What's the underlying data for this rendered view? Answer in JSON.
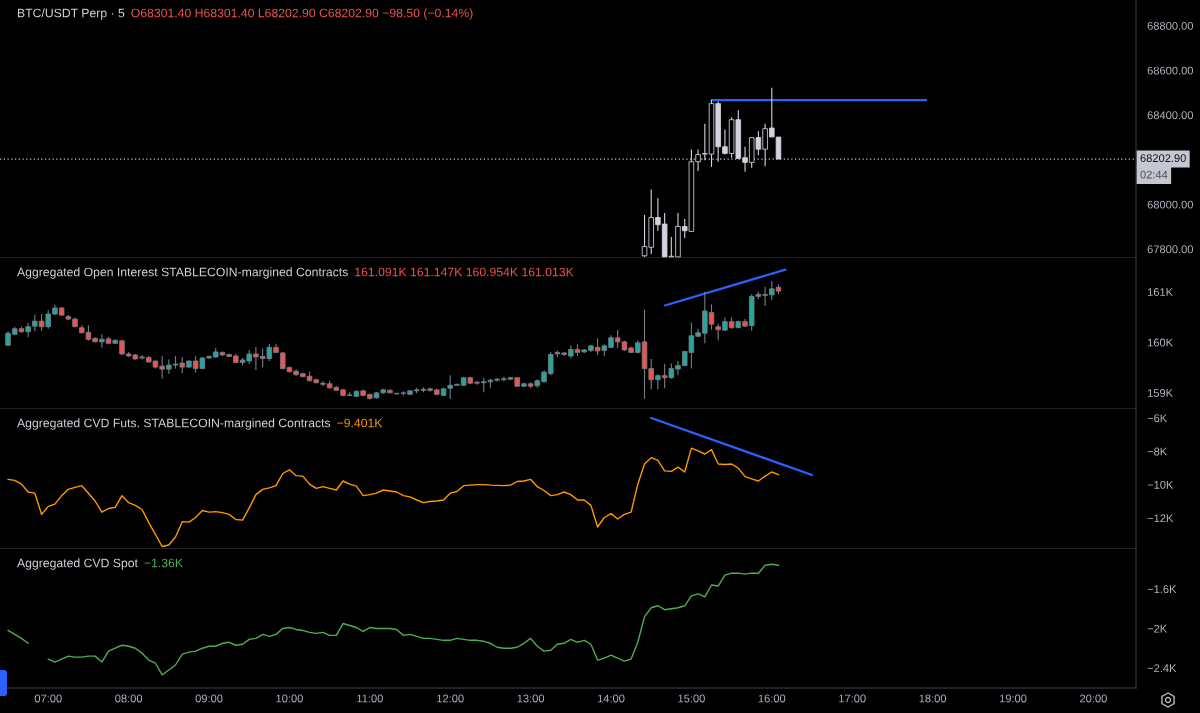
{
  "chart_data": [
    {
      "type": "candlestick",
      "title": "BTC/USDT Perp · 5",
      "subtitle": "O68301.40 H68301.40 L68202.90 C68202.90 −98.50 (−0.14%)",
      "x": [
        14.417,
        14.5,
        14.583,
        14.667,
        14.75,
        14.833,
        14.917,
        15,
        15.083,
        15.167,
        15.25,
        15.333,
        15.417,
        15.5,
        15.583,
        15.667,
        15.75,
        15.833,
        15.917,
        16,
        16.083
      ],
      "ohlc": [
        [
          67770,
          67953,
          67765,
          67811
        ],
        [
          67808,
          68067,
          67778,
          67941
        ],
        [
          67941,
          68027,
          67882,
          67909
        ],
        [
          67912,
          67961,
          67765,
          67765
        ],
        [
          67765,
          67854,
          67765,
          67765
        ],
        [
          67765,
          67961,
          67765,
          67901
        ],
        [
          67901,
          67935,
          67849,
          67882
        ],
        [
          67879,
          68246,
          67879,
          68191
        ],
        [
          68191,
          68246,
          68149,
          68223
        ],
        [
          68225,
          68361,
          68198,
          68227
        ],
        [
          68225,
          68468,
          68168,
          68451
        ],
        [
          68451,
          68461,
          68191,
          68258
        ],
        [
          68258,
          68335,
          68223,
          68228
        ],
        [
          68228,
          68390,
          68209,
          68379
        ],
        [
          68379,
          68421,
          68203,
          68206
        ],
        [
          68209,
          68258,
          68146,
          68188
        ],
        [
          68188,
          68299,
          68164,
          68299
        ],
        [
          68299,
          68327,
          68220,
          68247
        ],
        [
          68247,
          68361,
          68171,
          68339
        ],
        [
          68342,
          68522,
          68302,
          68302
        ],
        [
          68301.4,
          68301.4,
          68202.9,
          68202.9
        ]
      ],
      "color": "#d1d4dc",
      "colors": [
        "#000000",
        "#000000",
        "#d1d4dc",
        "#d1d4dc",
        "#000000",
        "#000000",
        "#d1d4dc",
        "#000000",
        "#000000",
        "#000000",
        "#000000",
        "#d1d4dc",
        "#d1d4dc",
        "#000000",
        "#d1d4dc",
        "#d1d4dc",
        "#000000",
        "#d1d4dc",
        "#000000",
        "#d1d4dc",
        "#d1d4dc"
      ],
      "series": [
        {
          "type": "line",
          "color": "#2962ff",
          "x": [
            15.25,
            17.92
          ],
          "values": [
            68467,
            68467
          ]
        }
      ],
      "xlim": [
        6.4,
        20.53
      ],
      "ylim": [
        67760,
        68915
      ],
      "yticks": [
        {
          "value": 67800,
          "label": "67800.00"
        },
        {
          "value": 68000,
          "label": "68000.00"
        },
        {
          "value": 68400,
          "label": "68400.00"
        },
        {
          "value": 68600,
          "label": "68600.00"
        },
        {
          "value": 68800,
          "label": "68800.00"
        }
      ],
      "ref_lines": [
        {
          "axis": "y",
          "value": 68202.9,
          "label": "68202.90",
          "line_style": "dotted",
          "color": "#c4c7cf"
        }
      ],
      "annotations": [
        "02:44"
      ],
      "tick_labels": "y"
    },
    {
      "type": "candlestick",
      "title": "Aggregated Open Interest STABLECOIN-margined Contracts",
      "subtitle": "161.091K 161.147K 160.954K 161.013K",
      "x": [
        6.5,
        6.583,
        6.667,
        6.75,
        6.833,
        6.917,
        7,
        7.083,
        7.167,
        7.25,
        7.333,
        7.417,
        7.5,
        7.583,
        7.667,
        7.75,
        7.833,
        7.917,
        8,
        8.083,
        8.167,
        8.25,
        8.333,
        8.417,
        8.5,
        8.583,
        8.667,
        8.75,
        8.833,
        8.917,
        9,
        9.083,
        9.167,
        9.25,
        9.333,
        9.417,
        9.5,
        9.583,
        9.667,
        9.75,
        9.833,
        9.917,
        10,
        10.083,
        10.167,
        10.25,
        10.333,
        10.417,
        10.5,
        10.583,
        10.667,
        10.75,
        10.833,
        10.917,
        11,
        11.083,
        11.167,
        11.25,
        11.333,
        11.417,
        11.5,
        11.583,
        11.667,
        11.75,
        11.833,
        11.917,
        12,
        12.083,
        12.167,
        12.25,
        12.333,
        12.417,
        12.5,
        12.583,
        12.667,
        12.75,
        12.833,
        12.917,
        13,
        13.083,
        13.167,
        13.25,
        13.333,
        13.417,
        13.5,
        13.583,
        13.667,
        13.75,
        13.833,
        13.917,
        14,
        14.083,
        14.167,
        14.25,
        14.333,
        14.417,
        14.5,
        14.583,
        14.667,
        14.75,
        14.833,
        14.917,
        15,
        15.083,
        15.167,
        15.25,
        15.333,
        15.417,
        15.5,
        15.583,
        15.667,
        15.75,
        15.833,
        15.917,
        16,
        16.083
      ],
      "ohlc": [
        [
          159940,
          160220,
          159940,
          160180
        ],
        [
          160160,
          160310,
          160140,
          160270
        ],
        [
          160270,
          160310,
          160190,
          160210
        ],
        [
          160210,
          160390,
          160100,
          160310
        ],
        [
          160320,
          160550,
          160220,
          160420
        ],
        [
          160420,
          160560,
          160230,
          160310
        ],
        [
          160310,
          160640,
          160270,
          160560
        ],
        [
          160560,
          160750,
          160540,
          160680
        ],
        [
          160680,
          160700,
          160520,
          160540
        ],
        [
          160510,
          160540,
          160440,
          160460
        ],
        [
          160460,
          160490,
          160300,
          160310
        ],
        [
          160290,
          160340,
          160180,
          160190
        ],
        [
          160200,
          160340,
          160030,
          160060
        ],
        [
          160080,
          160100,
          160000,
          160010
        ],
        [
          160010,
          160160,
          159900,
          160060
        ],
        [
          160070,
          160110,
          159960,
          159980
        ],
        [
          159980,
          160060,
          159970,
          160040
        ],
        [
          160030,
          160050,
          159750,
          159770
        ],
        [
          159770,
          159810,
          159710,
          159730
        ],
        [
          159750,
          159770,
          159660,
          159670
        ],
        [
          159690,
          159750,
          159660,
          159710
        ],
        [
          159700,
          159730,
          159600,
          159610
        ],
        [
          159630,
          159640,
          159480,
          159510
        ],
        [
          159530,
          159730,
          159280,
          159470
        ],
        [
          159470,
          159660,
          159380,
          159550
        ],
        [
          159550,
          159730,
          159480,
          159570
        ],
        [
          159590,
          159710,
          159390,
          159510
        ],
        [
          159510,
          159640,
          159500,
          159630
        ],
        [
          159630,
          159730,
          159400,
          159480
        ],
        [
          159480,
          159710,
          159470,
          159690
        ],
        [
          159690,
          159740,
          159670,
          159720
        ],
        [
          159710,
          159890,
          159690,
          159810
        ],
        [
          159800,
          159820,
          159730,
          159750
        ],
        [
          159760,
          159780,
          159710,
          159720
        ],
        [
          159730,
          159770,
          159590,
          159600
        ],
        [
          159600,
          159690,
          159540,
          159650
        ],
        [
          159630,
          159850,
          159570,
          159770
        ],
        [
          159770,
          159910,
          159450,
          159710
        ],
        [
          159720,
          159880,
          159500,
          159680
        ],
        [
          159680,
          159970,
          159630,
          159900
        ],
        [
          159900,
          159970,
          159790,
          159800
        ],
        [
          159790,
          159810,
          159460,
          159480
        ],
        [
          159500,
          159520,
          159400,
          159420
        ],
        [
          159430,
          159460,
          159340,
          159360
        ],
        [
          159380,
          159400,
          159310,
          159320
        ],
        [
          159330,
          159420,
          159230,
          159240
        ],
        [
          159260,
          159280,
          159190,
          159200
        ],
        [
          159190,
          159230,
          159130,
          159170
        ],
        [
          159180,
          159240,
          159080,
          159100
        ],
        [
          159110,
          159130,
          159040,
          159050
        ],
        [
          159060,
          159080,
          158930,
          158950
        ],
        [
          158960,
          159010,
          158930,
          158950
        ],
        [
          158930,
          159050,
          158920,
          159030
        ],
        [
          159040,
          159060,
          158930,
          158950
        ],
        [
          158970,
          158980,
          158870,
          158890
        ],
        [
          158900,
          159020,
          158890,
          159000
        ],
        [
          159000,
          159080,
          158980,
          159060
        ],
        [
          159050,
          159070,
          158990,
          159000
        ],
        [
          158990,
          159000,
          158970,
          158980
        ],
        [
          158990,
          159030,
          158940,
          159000
        ],
        [
          158970,
          159050,
          158960,
          159040
        ],
        [
          159040,
          159100,
          158990,
          159060
        ],
        [
          159050,
          159110,
          159010,
          159070
        ],
        [
          159080,
          159100,
          159020,
          159050
        ],
        [
          159060,
          159080,
          158950,
          158970
        ],
        [
          158950,
          159100,
          158940,
          159080
        ],
        [
          159090,
          159350,
          158880,
          159150
        ],
        [
          159150,
          159180,
          159140,
          159170
        ],
        [
          159150,
          159320,
          159140,
          159300
        ],
        [
          159300,
          159320,
          159170,
          159190
        ],
        [
          159210,
          159240,
          159160,
          159190
        ],
        [
          159200,
          159300,
          159010,
          159220
        ],
        [
          159220,
          159280,
          159100,
          159250
        ],
        [
          159250,
          159300,
          159220,
          159270
        ],
        [
          159260,
          159320,
          159230,
          159280
        ],
        [
          159270,
          159320,
          159250,
          159300
        ],
        [
          159300,
          159310,
          159120,
          159130
        ],
        [
          159130,
          159200,
          159120,
          159180
        ],
        [
          159180,
          159210,
          159090,
          159130
        ],
        [
          159140,
          159270,
          159100,
          159240
        ],
        [
          159220,
          159440,
          159210,
          159410
        ],
        [
          159380,
          159810,
          159350,
          159760
        ],
        [
          159770,
          159840,
          159710,
          159800
        ],
        [
          159790,
          159810,
          159730,
          159760
        ],
        [
          159730,
          159940,
          159680,
          159860
        ],
        [
          159860,
          159960,
          159730,
          159800
        ],
        [
          159810,
          159870,
          159790,
          159850
        ],
        [
          159840,
          159950,
          159810,
          159930
        ],
        [
          159900,
          160080,
          159750,
          159830
        ],
        [
          159840,
          159960,
          159730,
          159930
        ],
        [
          159900,
          160140,
          159890,
          160090
        ],
        [
          160090,
          160250,
          159890,
          160010
        ],
        [
          160010,
          160030,
          159830,
          159850
        ],
        [
          159890,
          159910,
          159790,
          159800
        ],
        [
          159800,
          160040,
          159780,
          159990
        ],
        [
          160010,
          160650,
          158880,
          159480
        ],
        [
          159480,
          159670,
          159070,
          159260
        ],
        [
          159260,
          159370,
          159070,
          159340
        ],
        [
          159340,
          159570,
          159090,
          159300
        ],
        [
          159300,
          159580,
          159280,
          159480
        ],
        [
          159470,
          159630,
          159350,
          159540
        ],
        [
          159540,
          159830,
          159530,
          159820
        ],
        [
          159800,
          160390,
          159480,
          160130
        ],
        [
          160120,
          160270,
          160100,
          160190
        ],
        [
          160180,
          161000,
          159980,
          160620
        ],
        [
          160590,
          160750,
          160250,
          160360
        ],
        [
          160310,
          160370,
          160040,
          160250
        ],
        [
          160240,
          160490,
          160230,
          160410
        ],
        [
          160410,
          160490,
          160270,
          160290
        ],
        [
          160290,
          160430,
          160280,
          160410
        ],
        [
          160410,
          160460,
          160310,
          160320
        ],
        [
          160330,
          160950,
          160230,
          160910
        ],
        [
          160910,
          161000,
          160860,
          160950
        ],
        [
          160950,
          161100,
          160720,
          160930
        ],
        [
          160940,
          161210,
          160840,
          161060
        ],
        [
          161091,
          161147,
          160954,
          161013
        ]
      ],
      "color": "#787b86",
      "colors": [
        "#26a69a",
        "#26a69a",
        "#ef5350",
        "#26a69a",
        "#26a69a",
        "#ef5350",
        "#26a69a",
        "#26a69a",
        "#ef5350",
        "#ef5350",
        "#ef5350",
        "#ef5350",
        "#ef5350",
        "#ef5350",
        "#26a69a",
        "#ef5350",
        "#26a69a",
        "#ef5350",
        "#ef5350",
        "#ef5350",
        "#26a69a",
        "#ef5350",
        "#ef5350",
        "#ef5350",
        "#26a69a",
        "#26a69a",
        "#ef5350",
        "#26a69a",
        "#ef5350",
        "#26a69a",
        "#26a69a",
        "#26a69a",
        "#ef5350",
        "#ef5350",
        "#ef5350",
        "#26a69a",
        "#26a69a",
        "#ef5350",
        "#ef5350",
        "#26a69a",
        "#ef5350",
        "#ef5350",
        "#ef5350",
        "#ef5350",
        "#ef5350",
        "#ef5350",
        "#ef5350",
        "#ef5350",
        "#ef5350",
        "#ef5350",
        "#ef5350",
        "#ef5350",
        "#26a69a",
        "#ef5350",
        "#ef5350",
        "#26a69a",
        "#26a69a",
        "#ef5350",
        "#ef5350",
        "#26a69a",
        "#26a69a",
        "#26a69a",
        "#26a69a",
        "#ef5350",
        "#ef5350",
        "#26a69a",
        "#26a69a",
        "#26a69a",
        "#26a69a",
        "#ef5350",
        "#ef5350",
        "#26a69a",
        "#26a69a",
        "#26a69a",
        "#26a69a",
        "#26a69a",
        "#ef5350",
        "#26a69a",
        "#ef5350",
        "#26a69a",
        "#26a69a",
        "#26a69a",
        "#26a69a",
        "#ef5350",
        "#26a69a",
        "#ef5350",
        "#26a69a",
        "#26a69a",
        "#ef5350",
        "#26a69a",
        "#26a69a",
        "#ef5350",
        "#ef5350",
        "#ef5350",
        "#26a69a",
        "#ef5350",
        "#ef5350",
        "#26a69a",
        "#ef5350",
        "#26a69a",
        "#26a69a",
        "#26a69a",
        "#26a69a",
        "#26a69a",
        "#26a69a",
        "#ef5350",
        "#ef5350",
        "#26a69a",
        "#ef5350",
        "#26a69a",
        "#ef5350",
        "#26a69a",
        "#26a69a",
        "#ef5350",
        "#26a69a",
        "#ef5350"
      ],
      "series": [
        {
          "type": "line",
          "color": "#2962ff",
          "x": [
            14.67,
            16.17
          ],
          "values": [
            160730,
            161440
          ]
        }
      ],
      "xlim": [
        6.4,
        20.53
      ],
      "ylim": [
        158680,
        161670
      ],
      "yticks": [
        {
          "value": 159000,
          "label": "159K"
        },
        {
          "value": 160000,
          "label": "160K"
        },
        {
          "value": 161000,
          "label": "161K"
        }
      ],
      "tick_labels": "y"
    },
    {
      "type": "line",
      "title": "Aggregated CVD Futs. STABLECOIN-margined Contracts",
      "subtitle": "−9.401K",
      "x": [
        6.5,
        6.583,
        6.667,
        6.75,
        6.833,
        6.917,
        7,
        7.083,
        7.167,
        7.25,
        7.333,
        7.417,
        7.5,
        7.583,
        7.667,
        7.75,
        7.833,
        7.917,
        8,
        8.083,
        8.167,
        8.25,
        8.333,
        8.417,
        8.5,
        8.583,
        8.667,
        8.75,
        8.833,
        8.917,
        9,
        9.083,
        9.167,
        9.25,
        9.333,
        9.417,
        9.5,
        9.583,
        9.667,
        9.75,
        9.833,
        9.917,
        10,
        10.083,
        10.167,
        10.25,
        10.333,
        10.417,
        10.5,
        10.583,
        10.667,
        10.75,
        10.833,
        10.917,
        11,
        11.083,
        11.167,
        11.25,
        11.333,
        11.417,
        11.5,
        11.583,
        11.667,
        11.75,
        11.833,
        11.917,
        12,
        12.083,
        12.167,
        12.25,
        12.333,
        12.417,
        12.5,
        12.583,
        12.667,
        12.75,
        12.833,
        12.917,
        13,
        13.083,
        13.167,
        13.25,
        13.333,
        13.417,
        13.5,
        13.583,
        13.667,
        13.75,
        13.833,
        13.917,
        14,
        14.083,
        14.167,
        14.25,
        14.333,
        14.417,
        14.5,
        14.583,
        14.667,
        14.75,
        14.833,
        14.917,
        15,
        15.083,
        15.167,
        15.25,
        15.333,
        15.417,
        15.5,
        15.583,
        15.667,
        15.75,
        15.833,
        15.917,
        16,
        16.083
      ],
      "series": [
        {
          "color": "#ff9800",
          "values": [
            -9680,
            -9740,
            -9970,
            -10440,
            -10510,
            -11780,
            -11300,
            -11170,
            -10660,
            -10280,
            -10160,
            -10060,
            -10510,
            -10980,
            -11650,
            -11430,
            -11360,
            -10660,
            -11080,
            -11240,
            -11490,
            -12280,
            -12980,
            -13710,
            -13620,
            -13140,
            -12220,
            -12250,
            -11970,
            -11550,
            -11650,
            -11620,
            -11680,
            -11780,
            -12090,
            -12130,
            -11390,
            -10600,
            -10280,
            -10190,
            -10060,
            -9330,
            -9110,
            -9460,
            -9490,
            -9970,
            -10220,
            -10120,
            -10220,
            -10320,
            -9780,
            -9970,
            -10090,
            -10660,
            -10600,
            -10510,
            -10320,
            -10380,
            -10440,
            -10660,
            -10730,
            -10920,
            -11080,
            -11010,
            -10980,
            -10920,
            -10510,
            -10410,
            -10060,
            -10030,
            -10000,
            -10000,
            -10030,
            -10040,
            -10060,
            -10030,
            -9810,
            -9780,
            -9680,
            -10120,
            -10350,
            -10660,
            -10600,
            -10440,
            -10600,
            -10920,
            -10920,
            -11240,
            -12540,
            -11970,
            -11740,
            -12060,
            -11780,
            -11650,
            -9970,
            -8760,
            -8380,
            -8540,
            -9170,
            -9200,
            -8950,
            -9240,
            -7810,
            -7970,
            -8160,
            -7900,
            -8760,
            -8790,
            -8760,
            -9010,
            -9520,
            -9650,
            -9780,
            -9490,
            -9240,
            -9401
          ]
        },
        {
          "type": "line",
          "color": "#2962ff",
          "x": [
            14.5,
            16.5
          ],
          "values": [
            -6000,
            -9420
          ]
        }
      ],
      "xlim": [
        6.4,
        20.53
      ],
      "ylim": [
        -13860,
        -5460
      ],
      "yticks": [
        {
          "value": -12000,
          "label": "−12K"
        },
        {
          "value": -10000,
          "label": "−10K"
        },
        {
          "value": -8000,
          "label": "−8K"
        },
        {
          "value": -6000,
          "label": "−6K"
        }
      ],
      "tick_labels": "y"
    },
    {
      "type": "line",
      "title": "Aggregated CVD Spot",
      "subtitle": "−1.36K",
      "x": [
        6.5,
        6.583,
        6.667,
        6.75,
        6.833,
        6.917,
        7,
        7.083,
        7.167,
        7.25,
        7.333,
        7.417,
        7.5,
        7.583,
        7.667,
        7.75,
        7.833,
        7.917,
        8,
        8.083,
        8.167,
        8.25,
        8.333,
        8.417,
        8.5,
        8.583,
        8.667,
        8.75,
        8.833,
        8.917,
        9,
        9.083,
        9.167,
        9.25,
        9.333,
        9.417,
        9.5,
        9.583,
        9.667,
        9.75,
        9.833,
        9.917,
        10,
        10.083,
        10.167,
        10.25,
        10.333,
        10.417,
        10.5,
        10.583,
        10.667,
        10.75,
        10.833,
        10.917,
        11,
        11.083,
        11.167,
        11.25,
        11.333,
        11.417,
        11.5,
        11.583,
        11.667,
        11.75,
        11.833,
        11.917,
        12,
        12.083,
        12.167,
        12.25,
        12.333,
        12.417,
        12.5,
        12.583,
        12.667,
        12.75,
        12.833,
        12.917,
        13,
        13.083,
        13.167,
        13.25,
        13.333,
        13.417,
        13.5,
        13.583,
        13.667,
        13.75,
        13.833,
        13.917,
        14,
        14.083,
        14.167,
        14.25,
        14.333,
        14.417,
        14.5,
        14.583,
        14.667,
        14.75,
        14.833,
        14.917,
        15,
        15.083,
        15.167,
        15.25,
        15.333,
        15.417,
        15.5,
        15.583,
        15.667,
        15.75,
        15.833,
        15.917,
        16,
        16.083
      ],
      "series": [
        {
          "color": "#4caf50",
          "values": [
            -2020,
            -2060,
            -2100,
            -2150,
            null,
            null,
            -2310,
            -2340,
            -2310,
            -2280,
            -2290,
            -2290,
            -2280,
            -2280,
            -2340,
            -2230,
            -2200,
            -2170,
            -2180,
            -2200,
            -2250,
            -2320,
            -2350,
            -2470,
            -2420,
            -2370,
            -2260,
            -2240,
            -2230,
            -2200,
            -2180,
            -2180,
            -2150,
            -2140,
            -2170,
            -2160,
            -2110,
            -2100,
            -2060,
            -2080,
            -2060,
            -2000,
            -1990,
            -2010,
            -2020,
            -2040,
            -2050,
            -2040,
            -2070,
            -2070,
            -1950,
            -1970,
            -1990,
            -2030,
            -1990,
            -2000,
            -2000,
            -2000,
            -2010,
            -2070,
            -2060,
            -2080,
            -2100,
            -2100,
            -2110,
            -2120,
            -2120,
            -2100,
            -2110,
            -2120,
            -2120,
            -2130,
            -2150,
            -2190,
            -2200,
            -2200,
            -2190,
            -2150,
            -2100,
            -2180,
            -2230,
            -2220,
            -2160,
            -2150,
            -2110,
            -2140,
            -2120,
            -2160,
            -2320,
            -2300,
            -2270,
            -2300,
            -2330,
            -2310,
            -2140,
            -1880,
            -1790,
            -1770,
            -1810,
            -1800,
            -1790,
            -1770,
            -1670,
            -1650,
            -1680,
            -1560,
            -1570,
            -1460,
            -1440,
            -1440,
            -1450,
            -1440,
            -1440,
            -1360,
            -1350,
            -1360
          ]
        }
      ],
      "xlim": [
        6.4,
        20.53
      ],
      "xticks": [
        {
          "value": 7,
          "label": "07:00"
        },
        {
          "value": 8,
          "label": "08:00"
        },
        {
          "value": 9,
          "label": "09:00"
        },
        {
          "value": 10,
          "label": "10:00"
        },
        {
          "value": 11,
          "label": "11:00"
        },
        {
          "value": 12,
          "label": "12:00"
        },
        {
          "value": 13,
          "label": "13:00"
        },
        {
          "value": 14,
          "label": "14:00"
        },
        {
          "value": 15,
          "label": "15:00"
        },
        {
          "value": 16,
          "label": "16:00"
        },
        {
          "value": 17,
          "label": "17:00"
        },
        {
          "value": 18,
          "label": "18:00"
        },
        {
          "value": 19,
          "label": "19:00"
        },
        {
          "value": 20,
          "label": "20:00"
        }
      ],
      "ylim": [
        -2603,
        -1195
      ],
      "yticks": [
        {
          "value": -2400,
          "label": "−2.4K"
        },
        {
          "value": -2000,
          "label": "−2K"
        },
        {
          "value": -1600,
          "label": "−1.6K"
        }
      ]
    }
  ]
}
